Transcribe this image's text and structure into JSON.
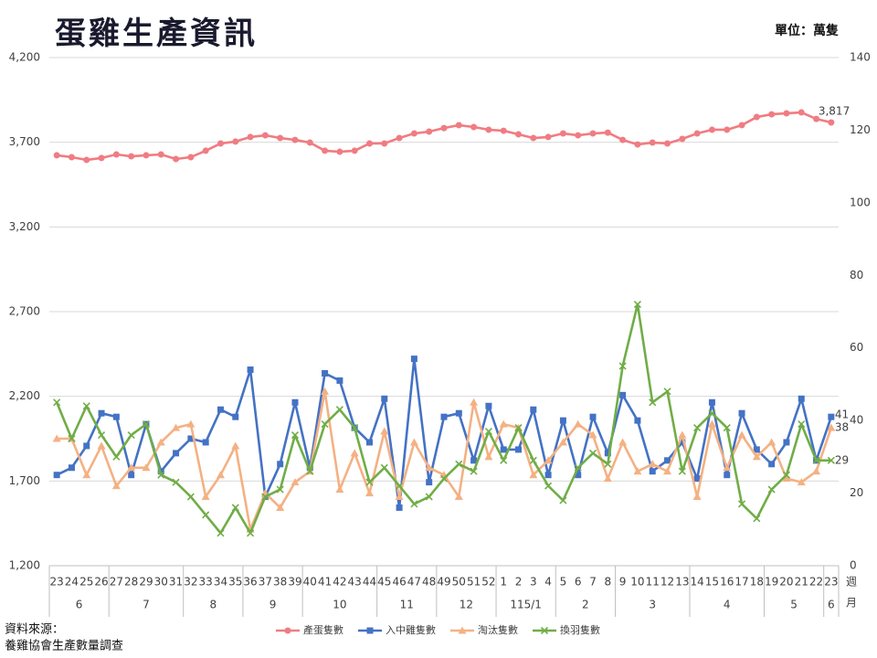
{
  "chart_data": {
    "type": "line",
    "title": "蛋雞生產資訊",
    "unit": "單位：萬隻",
    "source_lines": [
      "資料來源：",
      "養雞協會生產數量調查"
    ],
    "x_title_week": "週",
    "x_title_month": "月",
    "categories": [
      "23",
      "24",
      "25",
      "26",
      "27",
      "28",
      "29",
      "30",
      "31",
      "32",
      "33",
      "34",
      "35",
      "36",
      "37",
      "38",
      "39",
      "40",
      "41",
      "42",
      "43",
      "44",
      "45",
      "46",
      "47",
      "48",
      "49",
      "50",
      "51",
      "52",
      "1",
      "2",
      "3",
      "4",
      "5",
      "6",
      "7",
      "8",
      "9",
      "10",
      "11",
      "12",
      "13",
      "14",
      "15",
      "16",
      "17",
      "18",
      "19",
      "20",
      "21",
      "22",
      "23"
    ],
    "month_groups": [
      {
        "label": "6",
        "span": 4
      },
      {
        "label": "7",
        "span": 5
      },
      {
        "label": "8",
        "span": 4
      },
      {
        "label": "9",
        "span": 4
      },
      {
        "label": "10",
        "span": 5
      },
      {
        "label": "11",
        "span": 4
      },
      {
        "label": "12",
        "span": 4
      },
      {
        "label": "115/1",
        "span": 4
      },
      {
        "label": "2",
        "span": 4
      },
      {
        "label": "3",
        "span": 5
      },
      {
        "label": "4",
        "span": 5
      },
      {
        "label": "5",
        "span": 4
      },
      {
        "label": "6",
        "span": 1
      }
    ],
    "ylim": [
      1200,
      4200
    ],
    "yticks": [
      {
        "value": 1200,
        "label": "1,200"
      },
      {
        "value": 1700,
        "label": "1,700"
      },
      {
        "value": 2200,
        "label": "2,200"
      },
      {
        "value": 2700,
        "label": "2,700"
      },
      {
        "value": 3200,
        "label": "3,200"
      },
      {
        "value": 3700,
        "label": "3,700"
      },
      {
        "value": 4200,
        "label": "4,200"
      }
    ],
    "y2lim": [
      0,
      140
    ],
    "y2ticks": [
      0,
      20,
      40,
      60,
      80,
      100,
      120,
      140
    ],
    "grid": true,
    "series": [
      {
        "name": "產蛋隻數",
        "color": "#f07c82",
        "marker": "circle",
        "axis": "y",
        "values": [
          3623,
          3612,
          3596,
          3607,
          3628,
          3617,
          3623,
          3628,
          3601,
          3612,
          3650,
          3693,
          3704,
          3731,
          3741,
          3725,
          3714,
          3698,
          3650,
          3644,
          3650,
          3693,
          3693,
          3725,
          3752,
          3763,
          3784,
          3801,
          3790,
          3774,
          3768,
          3747,
          3725,
          3731,
          3752,
          3741,
          3752,
          3757,
          3714,
          3687,
          3698,
          3693,
          3720,
          3752,
          3774,
          3774,
          3801,
          3849,
          3865,
          3871,
          3876,
          3838,
          3817
        ],
        "value_labels": [
          null,
          null,
          null,
          null,
          null,
          null,
          null,
          null,
          null,
          null,
          null,
          null,
          null,
          null,
          null,
          null,
          null,
          null,
          null,
          null,
          null,
          null,
          null,
          null,
          null,
          null,
          null,
          null,
          null,
          null,
          null,
          null,
          null,
          null,
          null,
          null,
          null,
          null,
          null,
          null,
          null,
          null,
          null,
          null,
          null,
          null,
          null,
          null,
          null,
          null,
          null,
          null,
          "3,817"
        ]
      },
      {
        "name": "入中雞隻數",
        "color": "#4472c4",
        "marker": "square",
        "axis": "y2",
        "label_last": true,
        "values": [
          25,
          27,
          33,
          42,
          41,
          25,
          39,
          26,
          31,
          35,
          34,
          43,
          41,
          54,
          19,
          28,
          45,
          27,
          53,
          51,
          38,
          34,
          46,
          16,
          57,
          23,
          41,
          42,
          29,
          44,
          32,
          32,
          43,
          25,
          40,
          25,
          41,
          31,
          47,
          40,
          26,
          29,
          34,
          24,
          45,
          25,
          42,
          32,
          28,
          34,
          46,
          29,
          41
        ]
      },
      {
        "name": "淘汰隻數",
        "color": "#f4b183",
        "marker": "triangle",
        "axis": "y2",
        "label_last": true,
        "values": [
          35,
          35,
          25,
          33,
          22,
          27,
          27,
          34,
          38,
          39,
          19,
          25,
          33,
          10,
          20,
          16,
          23,
          26,
          48,
          21,
          31,
          20,
          37,
          19,
          34,
          27,
          25,
          19,
          45,
          30,
          39,
          38,
          25,
          29,
          34,
          39,
          36,
          24,
          34,
          26,
          28,
          26,
          36,
          19,
          39,
          27,
          36,
          30,
          34,
          24,
          23,
          26,
          38
        ]
      },
      {
        "name": "換羽隻數",
        "color": "#70ad47",
        "marker": "x",
        "axis": "y2",
        "label_last": true,
        "values": [
          45,
          35,
          44,
          36,
          30,
          36,
          39,
          25,
          23,
          19,
          14,
          9,
          16,
          9,
          19,
          21,
          36,
          26,
          39,
          43,
          38,
          23,
          27,
          22,
          17,
          19,
          24,
          28,
          26,
          37,
          29,
          38,
          29,
          22,
          18,
          27,
          31,
          28,
          55,
          72,
          45,
          48,
          26,
          38,
          42,
          38,
          17,
          13,
          21,
          25,
          39,
          29,
          29
        ]
      }
    ]
  }
}
